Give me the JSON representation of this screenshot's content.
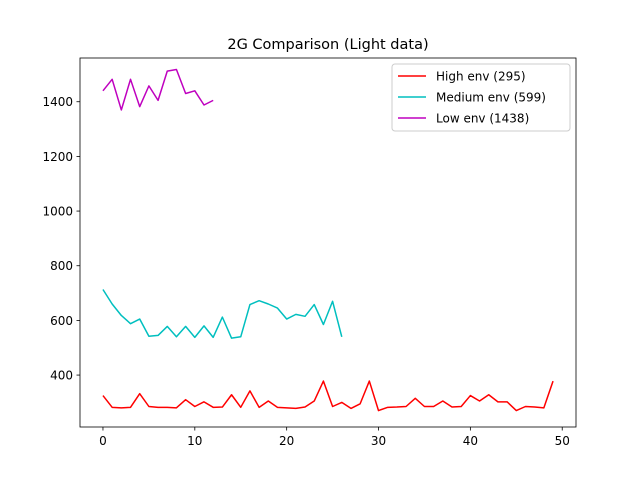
{
  "chart_data": {
    "type": "line",
    "title": "2G Comparison (Light data)",
    "xlabel": "",
    "ylabel": "",
    "xlim": [
      -2.5,
      51.5
    ],
    "ylim": [
      210,
      1560
    ],
    "xticks": [
      0,
      10,
      20,
      30,
      40,
      50
    ],
    "yticks": [
      400,
      600,
      800,
      1000,
      1200,
      1400
    ],
    "grid": false,
    "legend_position": "top-right",
    "series": [
      {
        "name": "High env (295)",
        "color": "#ff0000",
        "x": [
          0,
          1,
          2,
          3,
          4,
          5,
          6,
          7,
          8,
          9,
          10,
          11,
          12,
          13,
          14,
          15,
          16,
          17,
          18,
          19,
          20,
          21,
          22,
          23,
          24,
          25,
          26,
          27,
          28,
          29,
          30,
          31,
          32,
          33,
          34,
          35,
          36,
          37,
          38,
          39,
          40,
          41,
          42,
          43,
          44,
          45,
          46,
          47,
          48,
          49
        ],
        "values": [
          325,
          282,
          280,
          282,
          332,
          285,
          282,
          282,
          280,
          310,
          285,
          302,
          282,
          283,
          328,
          282,
          342,
          282,
          305,
          282,
          280,
          278,
          283,
          305,
          378,
          285,
          300,
          278,
          295,
          378,
          270,
          282,
          283,
          285,
          315,
          285,
          285,
          305,
          283,
          285,
          325,
          305,
          328,
          302,
          302,
          270,
          285,
          283,
          280,
          378
        ]
      },
      {
        "name": "Medium env (599)",
        "color": "#00bfbf",
        "x": [
          0,
          1,
          2,
          3,
          4,
          5,
          6,
          7,
          8,
          9,
          10,
          11,
          12,
          13,
          14,
          15,
          16,
          17,
          18,
          19,
          20,
          21,
          22,
          23,
          24,
          25,
          26
        ],
        "values": [
          713,
          660,
          618,
          588,
          605,
          542,
          545,
          578,
          540,
          578,
          538,
          580,
          538,
          612,
          535,
          540,
          658,
          672,
          660,
          645,
          605,
          622,
          615,
          658,
          585,
          670,
          540
        ]
      },
      {
        "name": "Low env (1438)",
        "color": "#bf00bf",
        "x": [
          0,
          1,
          2,
          3,
          4,
          5,
          6,
          7,
          8,
          9,
          10,
          11,
          12
        ],
        "values": [
          1440,
          1482,
          1370,
          1482,
          1382,
          1458,
          1405,
          1512,
          1518,
          1430,
          1440,
          1388,
          1405
        ]
      }
    ]
  }
}
